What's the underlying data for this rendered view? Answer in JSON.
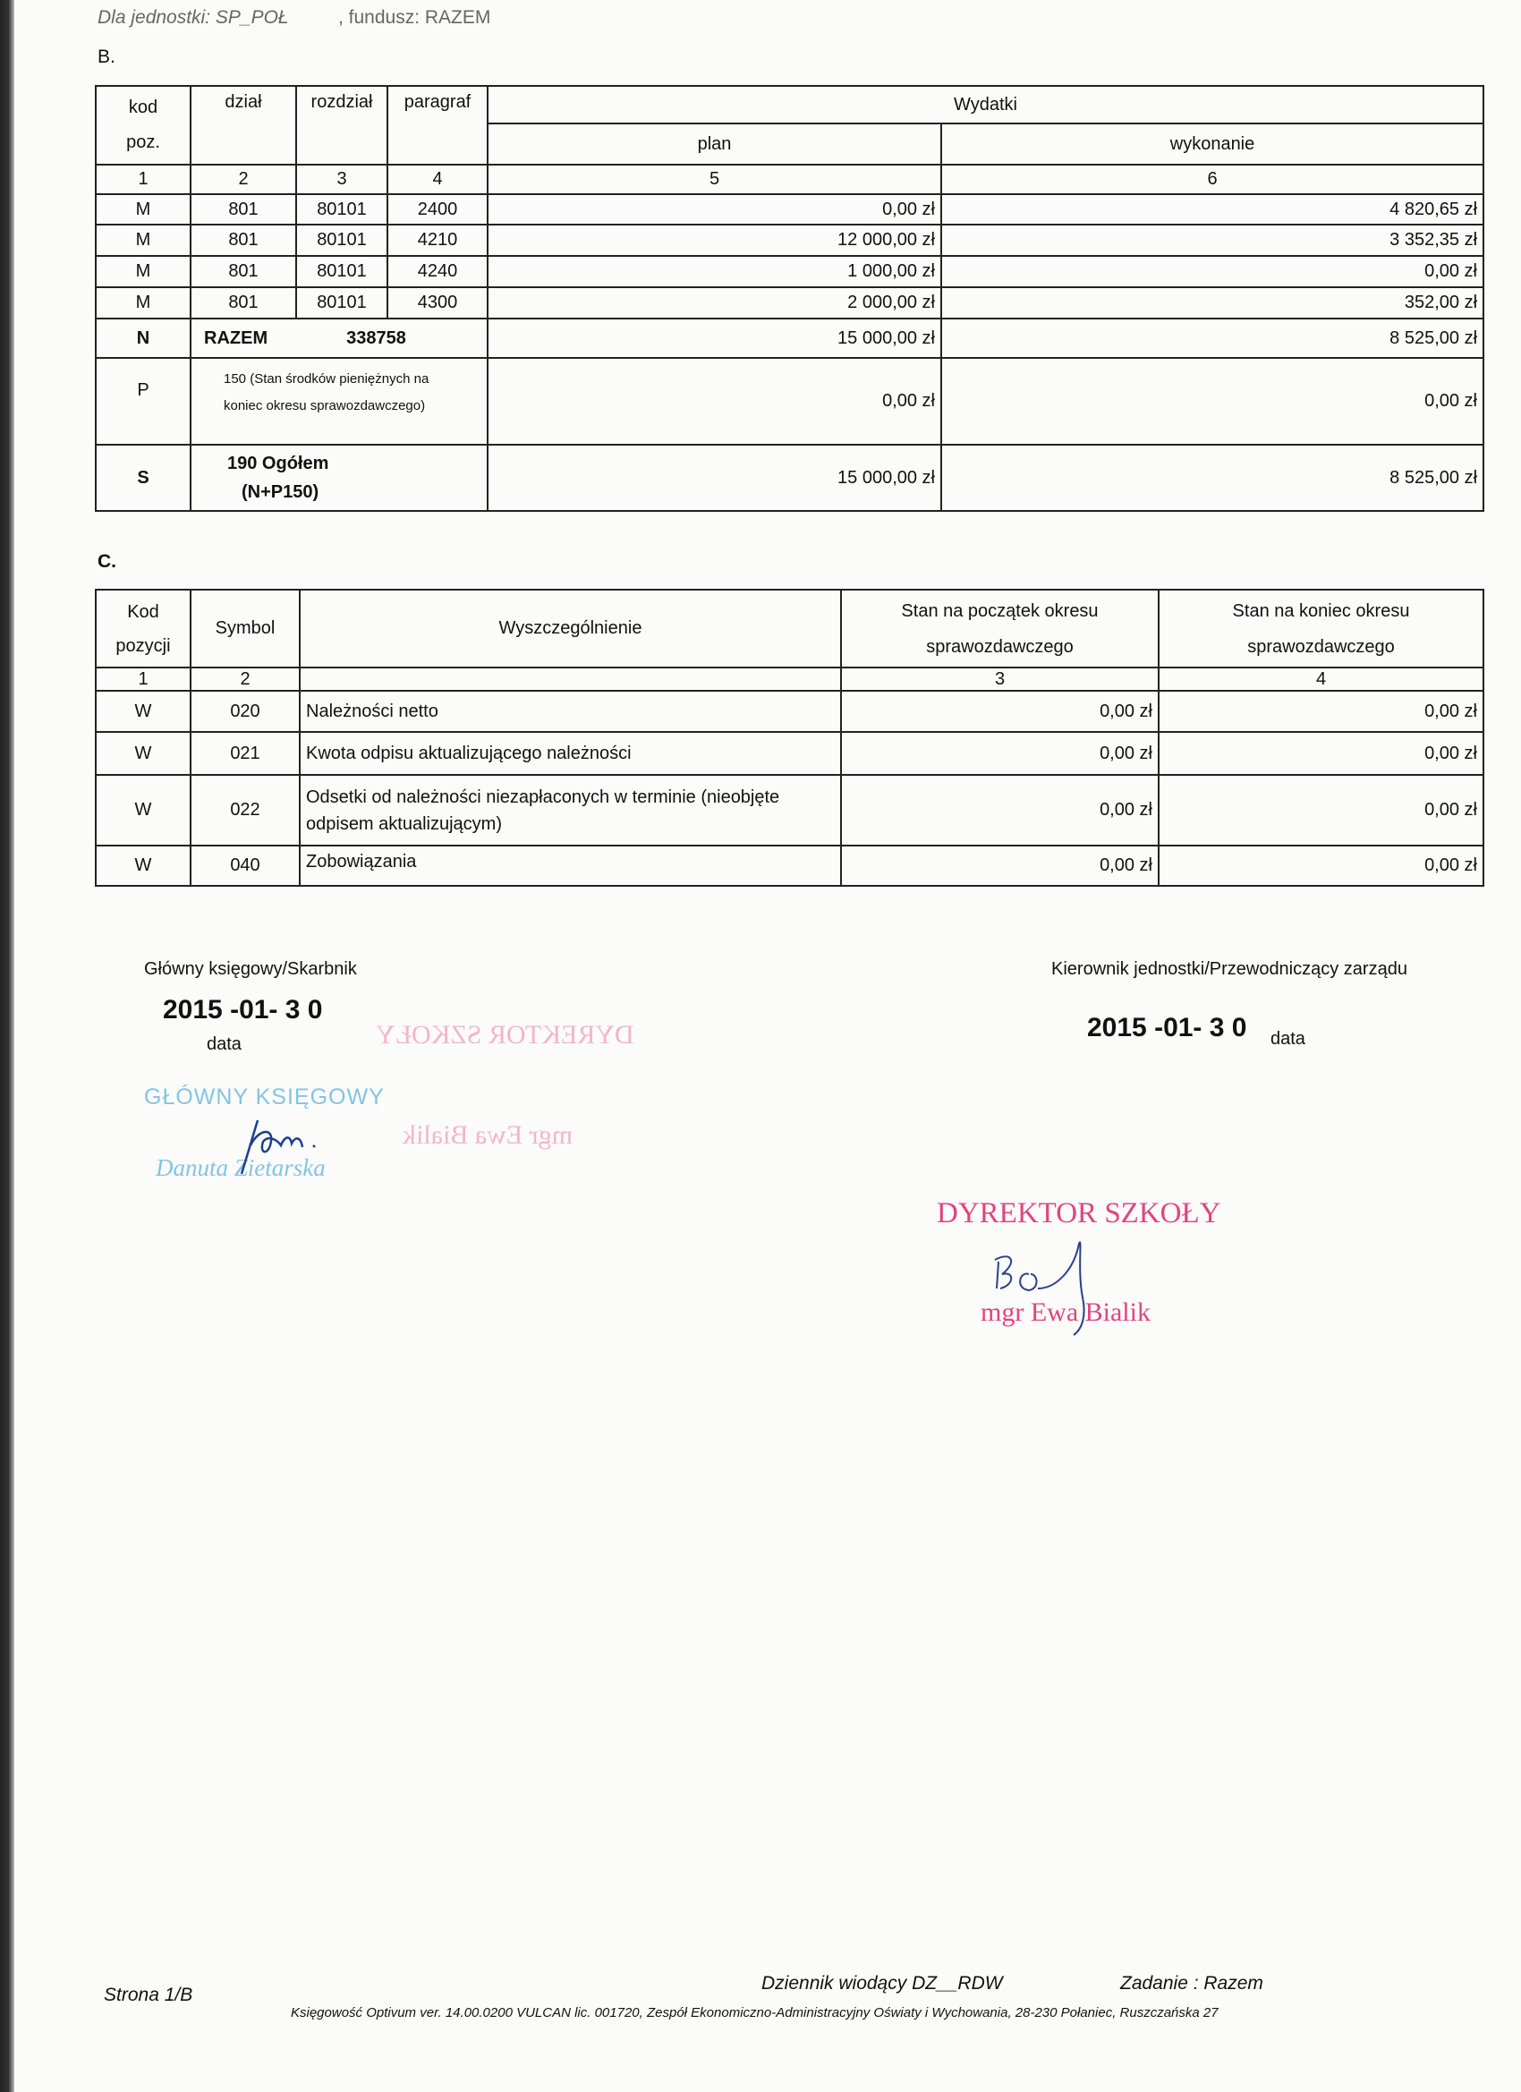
{
  "header": {
    "unit_label": "Dla jednostki: SP_POŁ",
    "fund_label": ", fundusz: RAZEM"
  },
  "section_b": {
    "title": "B.",
    "headers": {
      "kod": "kod",
      "poz": "poz.",
      "dzial": "dział",
      "rozdzial": "rozdział",
      "paragraf": "paragraf",
      "wydatki": "Wydatki",
      "plan": "plan",
      "wykonanie": "wykonanie"
    },
    "col_numbers": [
      "1",
      "2",
      "3",
      "4",
      "5",
      "6"
    ],
    "rows": [
      {
        "kod": "M",
        "dzial": "801",
        "rozdzial": "80101",
        "paragraf": "2400",
        "plan": "0,00 zł",
        "wykonanie": "4 820,65 zł"
      },
      {
        "kod": "M",
        "dzial": "801",
        "rozdzial": "80101",
        "paragraf": "4210",
        "plan": "12 000,00 zł",
        "wykonanie": "3 352,35 zł"
      },
      {
        "kod": "M",
        "dzial": "801",
        "rozdzial": "80101",
        "paragraf": "4240",
        "plan": "1 000,00 zł",
        "wykonanie": "0,00 zł"
      },
      {
        "kod": "M",
        "dzial": "801",
        "rozdzial": "80101",
        "paragraf": "4300",
        "plan": "2 000,00 zł",
        "wykonanie": "352,00 zł"
      }
    ],
    "total_n": {
      "kod": "N",
      "label": "RAZEM",
      "number": "338758",
      "plan": "15 000,00 zł",
      "wykonanie": "8 525,00 zł"
    },
    "row_p": {
      "kod": "P",
      "label_line1": "150 (Stan środków pieniężnych na",
      "label_line2": "koniec okresu sprawozdawczego)",
      "plan": "0,00 zł",
      "wykonanie": "0,00 zł"
    },
    "row_s": {
      "kod": "S",
      "label_line1": "190 Ogółem",
      "label_line2": "(N+P150)",
      "plan": "15 000,00 zł",
      "wykonanie": "8 525,00 zł"
    }
  },
  "section_c": {
    "title": "C.",
    "headers": {
      "kod_line1": "Kod",
      "kod_line2": "pozycji",
      "symbol": "Symbol",
      "wyszczegolnienie": "Wyszczególnienie",
      "start_line1": "Stan na początek okresu",
      "start_line2": "sprawozdawczego",
      "end_line1": "Stan na koniec okresu",
      "end_line2": "sprawozdawczego"
    },
    "col_numbers": [
      "1",
      "2",
      "3",
      "4"
    ],
    "rows": [
      {
        "kod": "W",
        "symbol": "020",
        "desc": "Należności netto",
        "desc2": "",
        "start": "0,00 zł",
        "end": "0,00 zł"
      },
      {
        "kod": "W",
        "symbol": "021",
        "desc": "Kwota odpisu aktualizującego należności",
        "desc2": "",
        "start": "0,00 zł",
        "end": "0,00 zł"
      },
      {
        "kod": "W",
        "symbol": "022",
        "desc": "Odsetki od należności niezapłaconych w terminie (nieobjęte",
        "desc2": "odpisem aktualizującym)",
        "start": "0,00 zł",
        "end": "0,00 zł"
      },
      {
        "kod": "W",
        "symbol": "040",
        "desc": "Zobowiązania",
        "desc2": "",
        "start": "0,00 zł",
        "end": "0,00 zł"
      }
    ]
  },
  "signatures": {
    "left_title": "Główny księgowy/Skarbnik",
    "left_date": "2015 -01- 3 0",
    "left_date_label": "data",
    "left_stamp_title": "GŁÓWNY KSIĘGOWY",
    "left_stamp_name": "Danuta Zietarska",
    "mirrored_stamp_title": "DYREKTOR SZKOŁY",
    "mirrored_stamp_name": "mgr Ewa Bialik",
    "right_title": "Kierownik jednostki/Przewodniczący zarządu",
    "right_date": "2015 -01- 3 0",
    "right_date_label": "data",
    "right_stamp_title": "DYREKTOR SZKOŁY",
    "right_stamp_name": "mgr Ewa Bialik",
    "colors": {
      "blue_stamp": "#84c4e2",
      "pink_stamp": "#e0457e",
      "ink": "#1c3f8f"
    }
  },
  "footer": {
    "page": "Strona 1/B",
    "journal": "Dziennik wiodący DZ__RDW",
    "task": "Zadanie : Razem",
    "software": "Księgowość Optivum ver. 14.00.0200 VULCAN lic. 001720, Zespół Ekonomiczno-Administracyjny Oświaty i Wychowania, 28-230 Połaniec, Ruszczańska 27"
  }
}
